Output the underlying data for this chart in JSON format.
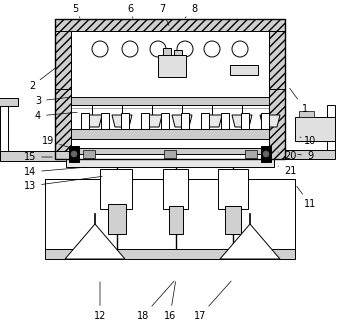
{
  "background_color": "#ffffff",
  "figure_width": 3.5,
  "figure_height": 3.34,
  "dpi": 100
}
